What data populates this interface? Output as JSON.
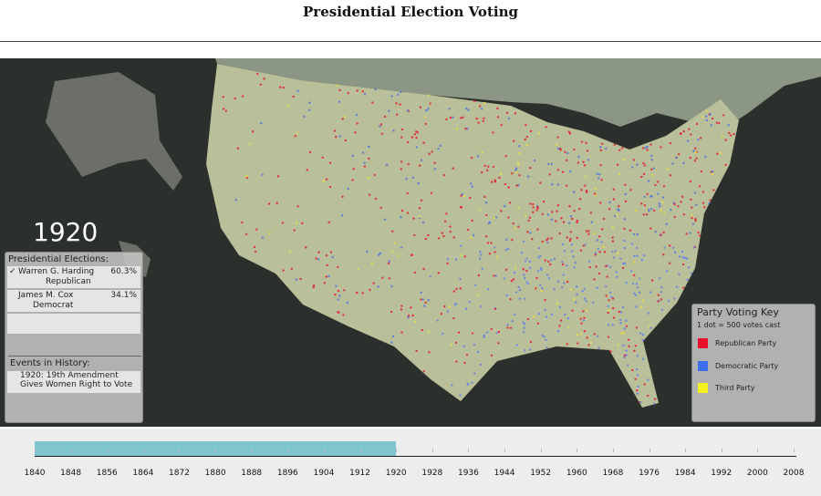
{
  "header": {
    "title": "Presidential Election Voting"
  },
  "year": "1920",
  "elections": {
    "heading": "Presidential Elections:",
    "candidates": [
      {
        "check": "✓",
        "name": "Warren G. Harding",
        "party": "Republican",
        "share": "60.3%"
      },
      {
        "name": "James M. Cox",
        "party": "Democrat",
        "share": "34.1%"
      }
    ]
  },
  "events": {
    "heading": "Events in History:",
    "lines": [
      "1920: 19th Amendment",
      "Gives Women Right to Vote"
    ]
  },
  "key": {
    "title": "Party Voting Key",
    "subtitle": "1 dot = 500 votes cast",
    "items": [
      "Republican Party",
      "Democratic Party",
      "Third Party"
    ]
  },
  "timeline": {
    "years": [
      "1840",
      "1848",
      "1856",
      "1864",
      "1872",
      "1880",
      "1888",
      "1896",
      "1904",
      "1912",
      "1920",
      "1928",
      "1936",
      "1944",
      "1952",
      "1960",
      "1968",
      "1976",
      "1984",
      "1992",
      "2000",
      "2008"
    ]
  }
}
